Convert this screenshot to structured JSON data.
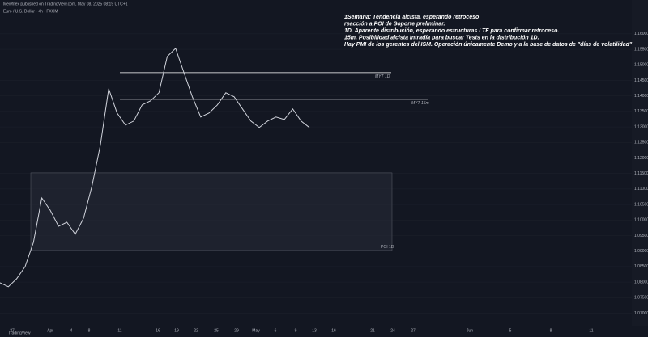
{
  "header": {
    "published": "Mewhfex published on TradingView.com, May 08, 2025 08:19 UTC+1",
    "symbol": "Euro / U.S. Dollar · 4h · FXCM"
  },
  "annotation": [
    "1Semana: Tendencia alcista, esperando retroceso",
    "reacción a POI de Soporte preliminar.",
    "1D. Aparente distribución, esperando estructuras LTF para confirmar retroceso.",
    "15m. Posibilidad alcista intradía para buscar Tests en la distribución 1D.",
    "Hay PMI de los gerentes del ISM. Operación únicamente Demo y a la base de datos de \"días de volatilidad\""
  ],
  "chart_data": {
    "type": "line",
    "color": "#d1d4dc",
    "values": [
      1.0798,
      1.0785,
      1.0811,
      1.085,
      1.0928,
      1.1071,
      1.1032,
      1.098,
      1.0993,
      1.0954,
      1.1006,
      1.111,
      1.1241,
      1.1423,
      1.1345,
      1.1306,
      1.1319,
      1.1371,
      1.1384,
      1.141,
      1.1527,
      1.1553,
      1.1475,
      1.1397,
      1.1332,
      1.1345,
      1.1371,
      1.141,
      1.1397,
      1.1358,
      1.1319,
      1.1298,
      1.1319,
      1.1332,
      1.1324,
      1.1358,
      1.1319,
      1.1298
    ],
    "ylim": [
      1.0657,
      1.1709
    ],
    "yticks": [
      {
        "value": 1.07,
        "label": "1.07000"
      },
      {
        "value": 1.075,
        "label": "1.07500"
      },
      {
        "value": 1.08,
        "label": "1.08000"
      },
      {
        "value": 1.085,
        "label": "1.08500"
      },
      {
        "value": 1.09,
        "label": "1.09000"
      },
      {
        "value": 1.095,
        "label": "1.09500"
      },
      {
        "value": 1.1,
        "label": "1.10000"
      },
      {
        "value": 1.105,
        "label": "1.10500"
      },
      {
        "value": 1.11,
        "label": "1.11000"
      },
      {
        "value": 1.115,
        "label": "1.11500"
      },
      {
        "value": 1.12,
        "label": "1.12000"
      },
      {
        "value": 1.125,
        "label": "1.12500"
      },
      {
        "value": 1.13,
        "label": "1.13000"
      },
      {
        "value": 1.135,
        "label": "1.13500"
      },
      {
        "value": 1.14,
        "label": "1.14000"
      },
      {
        "value": 1.145,
        "label": "1.14500"
      },
      {
        "value": 1.15,
        "label": "1.15000"
      },
      {
        "value": 1.155,
        "label": "1.15500"
      },
      {
        "value": 1.16,
        "label": "1.16000"
      }
    ],
    "levels": [
      {
        "name": "MYT 1D",
        "value": 1.1475
      },
      {
        "name": "MYT 15m",
        "value": 1.1389
      }
    ],
    "zone": {
      "name": "POI 1D",
      "range": [
        1.0902,
        1.1152
      ]
    }
  },
  "x_labels": [
    "27",
    "Apr",
    "4",
    "8",
    "11",
    "16",
    "19",
    "22",
    "25",
    "29",
    "May",
    "6",
    "9",
    "13",
    "16",
    "21",
    "24",
    "27",
    "Jun",
    "5",
    "8",
    "11"
  ],
  "footer": "TradingView"
}
